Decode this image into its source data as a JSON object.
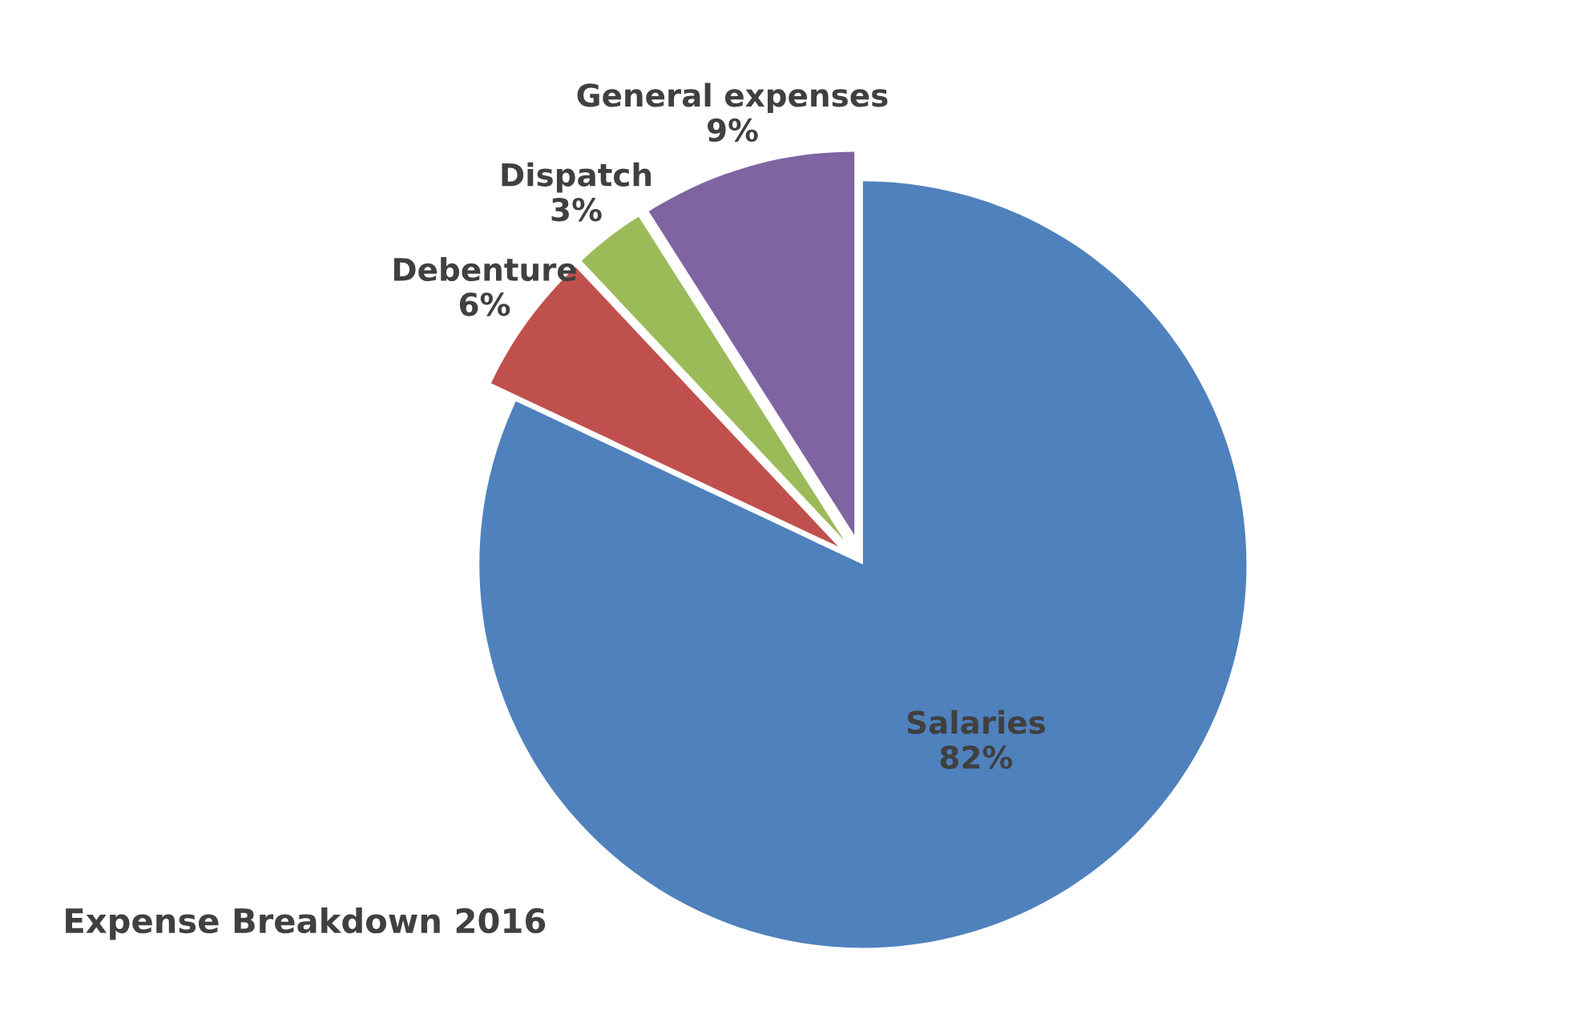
{
  "chart_data": {
    "type": "pie",
    "title": "Expense Breakdown 2016",
    "categories": [
      "Salaries",
      "Debenture",
      "Dispatch",
      "General expenses"
    ],
    "values": [
      82,
      6,
      3,
      9
    ],
    "value_labels": [
      "82%",
      "6%",
      "3%",
      "9%"
    ],
    "colors": [
      "#4f81bd",
      "#c0504d",
      "#9bbb59",
      "#8064a2"
    ],
    "legend": false
  }
}
